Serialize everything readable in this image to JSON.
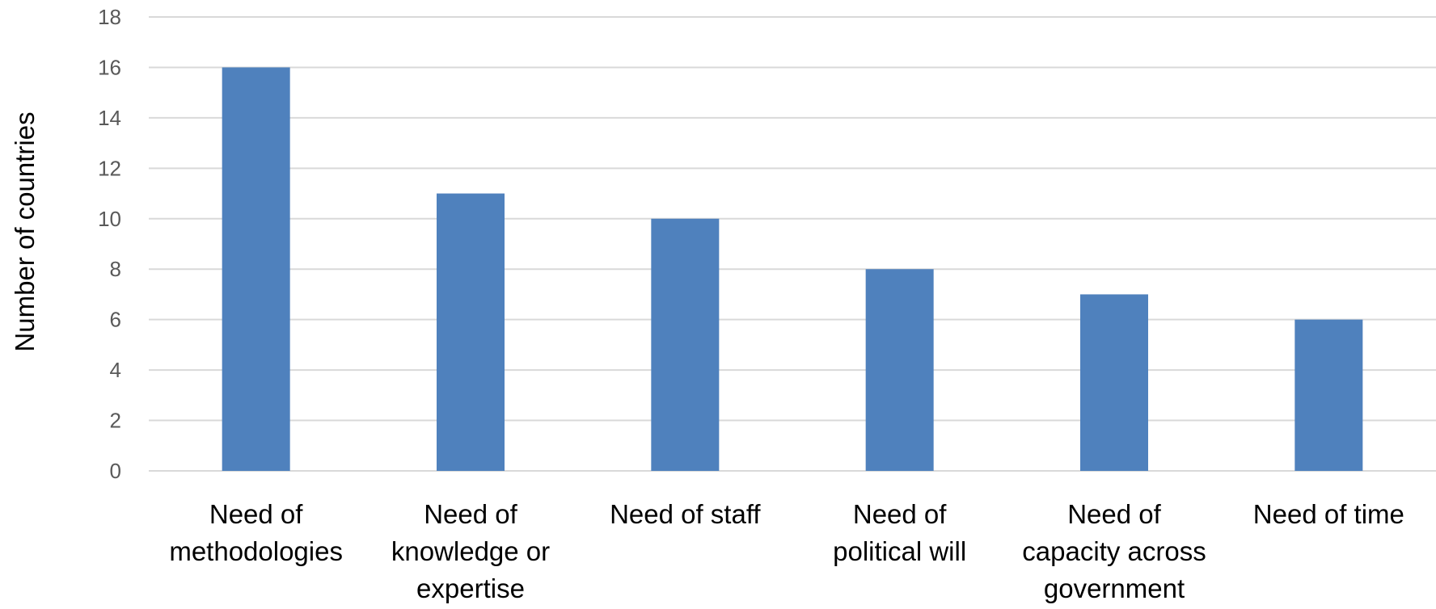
{
  "chart_data": {
    "type": "bar",
    "categories": [
      [
        "Need of",
        "methodologies"
      ],
      [
        "Need of",
        "knowledge or",
        "expertise"
      ],
      [
        "Need of staff"
      ],
      [
        "Need of",
        "political will"
      ],
      [
        "Need of",
        "capacity across",
        "government"
      ],
      [
        "Need of time"
      ]
    ],
    "values": [
      16,
      11,
      10,
      8,
      7,
      6
    ],
    "title": "",
    "xlabel": "",
    "ylabel": "Number of countries",
    "ylim": [
      0,
      18
    ],
    "yticks": [
      0,
      2,
      4,
      6,
      8,
      10,
      12,
      14,
      16,
      18
    ],
    "grid": true,
    "legend": "none",
    "colors": {
      "bar": "#4f81bd",
      "grid": "#d9d9d9",
      "tick_text": "#595959",
      "label_text": "#000000"
    }
  }
}
